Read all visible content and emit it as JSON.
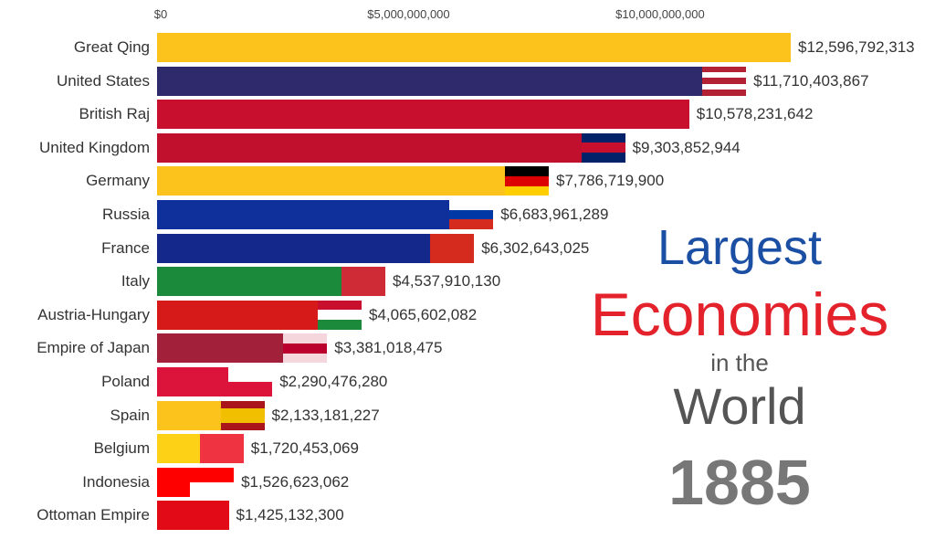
{
  "chart_data": {
    "type": "bar",
    "orientation": "horizontal",
    "xlim": [
      0,
      12600000000
    ],
    "x_ticks": [
      {
        "value": 0,
        "label": "$0"
      },
      {
        "value": 5000000000,
        "label": "$5,000,000,000"
      },
      {
        "value": 10000000000,
        "label": "$10,000,000,000"
      }
    ],
    "title_lines": [
      "Largest",
      "Economies",
      "in the",
      "World"
    ],
    "year": "1885",
    "bars": [
      {
        "category": "Great Qing",
        "value": 12596792313,
        "label": "$12,596,792,313",
        "color": "#fbc31c",
        "flag": [
          "#fbc31c"
        ]
      },
      {
        "category": "United States",
        "value": 11710403867,
        "label": "$11,710,403,867",
        "color": "#2e2a6b",
        "flag": [
          "#b22234",
          "#ffffff",
          "#b22234",
          "#ffffff",
          "#b22234"
        ]
      },
      {
        "category": "British Raj",
        "value": 10578231642,
        "label": "$10,578,231,642",
        "color": "#c8102e",
        "flag": [
          "#c8102e"
        ]
      },
      {
        "category": "United Kingdom",
        "value": 9303852944,
        "label": "$9,303,852,944",
        "color": "#c0102e",
        "flag": [
          "#012169",
          "#c8102e",
          "#012169"
        ]
      },
      {
        "category": "Germany",
        "value": 7786719900,
        "label": "$7,786,719,900",
        "color": "#fbc31c",
        "flag": [
          "#000000",
          "#dd0000",
          "#ffce00"
        ]
      },
      {
        "category": "Russia",
        "value": 6683961289,
        "label": "$6,683,961,289",
        "color": "#0f2f9a",
        "flag": [
          "#ffffff",
          "#0039a6",
          "#d52b1e"
        ]
      },
      {
        "category": "France",
        "value": 6302643025,
        "label": "$6,302,643,025",
        "color": "#14288c",
        "flag": [
          "#d52b1e"
        ]
      },
      {
        "category": "Italy",
        "value": 4537910130,
        "label": "$4,537,910,130",
        "color": "#1b8a3a",
        "flag": [
          "#ce2b37"
        ]
      },
      {
        "category": "Austria-Hungary",
        "value": 4065602082,
        "label": "$4,065,602,082",
        "color": "#d61a1a",
        "flag": [
          "#c8102e",
          "#ffffff",
          "#1b8a3a"
        ]
      },
      {
        "category": "Empire of Japan",
        "value": 3381018475,
        "label": "$3,381,018,475",
        "color": "#a3203a",
        "flag": [
          "#f4d6dc",
          "#bc002d",
          "#f4d6dc"
        ]
      },
      {
        "category": "Poland",
        "value": 2290476280,
        "label": "$2,290,476,280",
        "color": "#dc143c",
        "flag": [
          "#ffffff",
          "#dc143c"
        ]
      },
      {
        "category": "Spain",
        "value": 2133181227,
        "label": "$2,133,181,227",
        "color": "#fbc31c",
        "flag": [
          "#aa151b",
          "#f1bf00",
          "#f1bf00",
          "#aa151b"
        ]
      },
      {
        "category": "Belgium",
        "value": 1720453069,
        "label": "$1,720,453,069",
        "color": "#fcd116",
        "flag": [
          "#ef3340"
        ]
      },
      {
        "category": "Indonesia",
        "value": 1526623062,
        "label": "$1,526,623,062",
        "color": "#ff0000",
        "flag": [
          "#ff0000",
          "#ffffff"
        ]
      },
      {
        "category": "Ottoman Empire",
        "value": 1425132300,
        "label": "$1,425,132,300",
        "color": "#e30a17",
        "flag": [
          "#e30a17"
        ]
      }
    ]
  }
}
